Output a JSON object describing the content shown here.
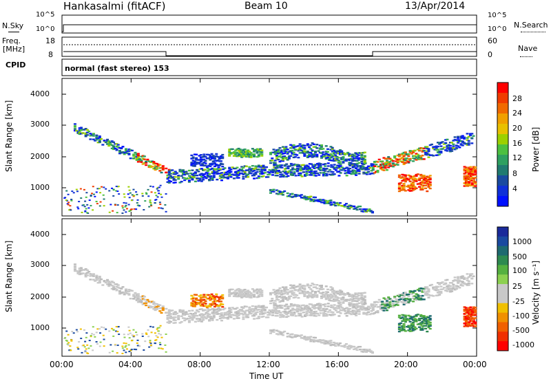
{
  "header": {
    "station": "Hankasalmi (fitACF)",
    "beam": "Beam 10",
    "date": "13/Apr/2014"
  },
  "status_panels": {
    "nsky_label": "N.Sky",
    "nsky_ticks": [
      "10^5",
      "10^0"
    ],
    "nsearch_label": "N.Search",
    "nsearch_ticks": [
      "10^5",
      "10^0"
    ],
    "freq_label_1": "Freq.",
    "freq_label_2": "[MHz]",
    "freq_ticks": [
      "18",
      "8"
    ],
    "nave_label": "Nave",
    "nave_ticks": [
      "60",
      "0"
    ],
    "cpid_label": "CPID",
    "cpid_text": "normal (fast stereo) 153"
  },
  "chart_data": [
    {
      "type": "heatmap",
      "name": "power-panel",
      "ylabel": "Slant Range [km]",
      "yticks": [
        "4000",
        "3000",
        "2000",
        "1000"
      ],
      "ylim": [
        200,
        4600
      ],
      "xlim": [
        0,
        24
      ],
      "colorbar": {
        "label": "Power [dB]",
        "ticks": [
          "28",
          "24",
          "20",
          "16",
          "12",
          "8",
          "4"
        ],
        "colors": [
          "#ff0000",
          "#f03c00",
          "#f06a00",
          "#f0a000",
          "#e8c000",
          "#9cd000",
          "#4cc040",
          "#2ea060",
          "#207a70",
          "#1a4aa0",
          "#1030d8",
          "#0010ff"
        ]
      }
    },
    {
      "type": "heatmap",
      "name": "velocity-panel",
      "ylabel": "Slant Range [km]",
      "yticks": [
        "4000",
        "3000",
        "2000",
        "1000"
      ],
      "ylim": [
        200,
        4600
      ],
      "xlim": [
        0,
        24
      ],
      "xlabel": "Time UT",
      "xticks": [
        "00:00",
        "04:00",
        "08:00",
        "12:00",
        "16:00",
        "20:00",
        "00:00"
      ],
      "colorbar": {
        "label": "Velocity [m s⁻¹]",
        "ticks": [
          "1000",
          "500",
          "100",
          "25",
          "-25",
          "-100",
          "-500",
          "-1000"
        ],
        "colors": [
          "#1a2a9a",
          "#1a4aa0",
          "#1e6a70",
          "#2e8a50",
          "#55b040",
          "#8cd050",
          "#c8c8c8",
          "#c8c8c8",
          "#f0c000",
          "#f09000",
          "#f06000",
          "#f03000",
          "#ff0000"
        ]
      }
    }
  ]
}
